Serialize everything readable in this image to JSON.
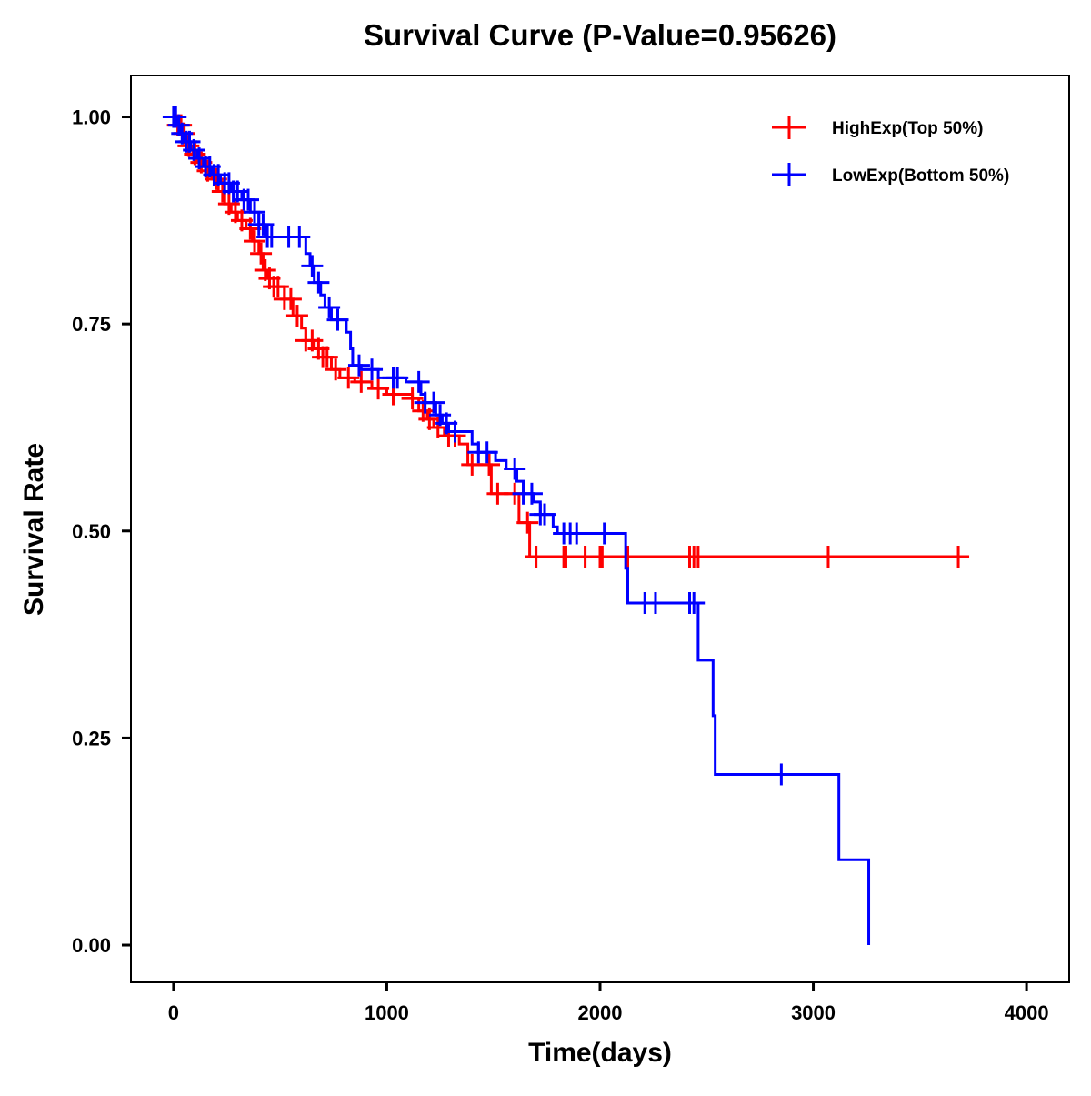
{
  "chart_data": {
    "type": "line",
    "subtype": "kaplan-meier",
    "title": "Survival Curve (P-Value=0.95626)",
    "xlabel": "Time(days)",
    "ylabel": "Survival Rate",
    "xlim": [
      -200,
      4200
    ],
    "ylim": [
      -0.045,
      1.05
    ],
    "xticks": [
      0,
      1000,
      2000,
      3000,
      4000
    ],
    "xtick_labels": [
      "0",
      "1000",
      "2000",
      "3000",
      "4000"
    ],
    "yticks": [
      0,
      0.25,
      0.5,
      0.75,
      1.0
    ],
    "ytick_labels": [
      "0.00",
      "0.25",
      "0.50",
      "0.75",
      "1.00"
    ],
    "grid": false,
    "legend_position": "top-right",
    "series": [
      {
        "name": "HighExp(Top 50%)",
        "color": "#ff0000",
        "steps": [
          [
            0,
            1.0
          ],
          [
            20,
            0.99
          ],
          [
            40,
            0.98
          ],
          [
            60,
            0.965
          ],
          [
            90,
            0.955
          ],
          [
            110,
            0.945
          ],
          [
            150,
            0.935
          ],
          [
            180,
            0.925
          ],
          [
            210,
            0.91
          ],
          [
            240,
            0.895
          ],
          [
            270,
            0.885
          ],
          [
            300,
            0.875
          ],
          [
            340,
            0.865
          ],
          [
            370,
            0.85
          ],
          [
            400,
            0.835
          ],
          [
            420,
            0.815
          ],
          [
            440,
            0.805
          ],
          [
            470,
            0.795
          ],
          [
            520,
            0.78
          ],
          [
            560,
            0.76
          ],
          [
            600,
            0.745
          ],
          [
            620,
            0.73
          ],
          [
            660,
            0.72
          ],
          [
            700,
            0.71
          ],
          [
            740,
            0.695
          ],
          [
            780,
            0.685
          ],
          [
            850,
            0.68
          ],
          [
            930,
            0.672
          ],
          [
            1000,
            0.665
          ],
          [
            1120,
            0.66
          ],
          [
            1150,
            0.645
          ],
          [
            1190,
            0.635
          ],
          [
            1220,
            0.625
          ],
          [
            1270,
            0.615
          ],
          [
            1340,
            0.605
          ],
          [
            1380,
            0.58
          ],
          [
            1490,
            0.545
          ],
          [
            1620,
            0.51
          ],
          [
            1670,
            0.469
          ]
        ],
        "end_time": 3710,
        "censor_times": [
          20,
          35,
          50,
          70,
          100,
          130,
          160,
          200,
          230,
          260,
          290,
          320,
          360,
          380,
          410,
          430,
          450,
          470,
          490,
          520,
          550,
          580,
          620,
          650,
          680,
          700,
          720,
          760,
          820,
          880,
          960,
          1030,
          1120,
          1170,
          1200,
          1240,
          1290,
          1320,
          1400,
          1480,
          1520,
          1600,
          1660,
          1700,
          1830,
          1840,
          1930,
          2000,
          2010,
          2130,
          2420,
          2440,
          2460,
          3070,
          3680
        ]
      },
      {
        "name": "LowExp(Bottom 50%)",
        "color": "#0000ff",
        "steps": [
          [
            0,
            1.0
          ],
          [
            15,
            0.99
          ],
          [
            30,
            0.98
          ],
          [
            50,
            0.97
          ],
          [
            80,
            0.96
          ],
          [
            110,
            0.95
          ],
          [
            140,
            0.94
          ],
          [
            180,
            0.93
          ],
          [
            220,
            0.92
          ],
          [
            270,
            0.91
          ],
          [
            320,
            0.9
          ],
          [
            360,
            0.885
          ],
          [
            400,
            0.87
          ],
          [
            430,
            0.855
          ],
          [
            620,
            0.835
          ],
          [
            640,
            0.82
          ],
          [
            660,
            0.8
          ],
          [
            690,
            0.785
          ],
          [
            710,
            0.77
          ],
          [
            740,
            0.755
          ],
          [
            810,
            0.74
          ],
          [
            830,
            0.72
          ],
          [
            840,
            0.7
          ],
          [
            880,
            0.695
          ],
          [
            960,
            0.685
          ],
          [
            1090,
            0.68
          ],
          [
            1160,
            0.665
          ],
          [
            1180,
            0.655
          ],
          [
            1230,
            0.64
          ],
          [
            1260,
            0.63
          ],
          [
            1290,
            0.62
          ],
          [
            1400,
            0.605
          ],
          [
            1430,
            0.595
          ],
          [
            1510,
            0.585
          ],
          [
            1560,
            0.575
          ],
          [
            1610,
            0.56
          ],
          [
            1640,
            0.545
          ],
          [
            1690,
            0.535
          ],
          [
            1720,
            0.52
          ],
          [
            1780,
            0.505
          ],
          [
            1800,
            0.497
          ],
          [
            2120,
            0.455
          ],
          [
            2130,
            0.413
          ],
          [
            2460,
            0.344
          ],
          [
            2530,
            0.277
          ],
          [
            2540,
            0.206
          ],
          [
            3120,
            0.103
          ],
          [
            3260,
            0.0
          ]
        ],
        "end_time": 3260,
        "censor_times": [
          0,
          10,
          25,
          40,
          60,
          75,
          95,
          120,
          150,
          170,
          190,
          210,
          240,
          260,
          280,
          300,
          330,
          350,
          380,
          400,
          420,
          440,
          460,
          540,
          590,
          650,
          680,
          730,
          770,
          870,
          930,
          1030,
          1050,
          1150,
          1180,
          1220,
          1250,
          1280,
          1320,
          1430,
          1470,
          1600,
          1640,
          1680,
          1720,
          1740,
          1830,
          1860,
          1890,
          2020,
          2210,
          2260,
          2420,
          2440,
          2850
        ]
      }
    ]
  }
}
